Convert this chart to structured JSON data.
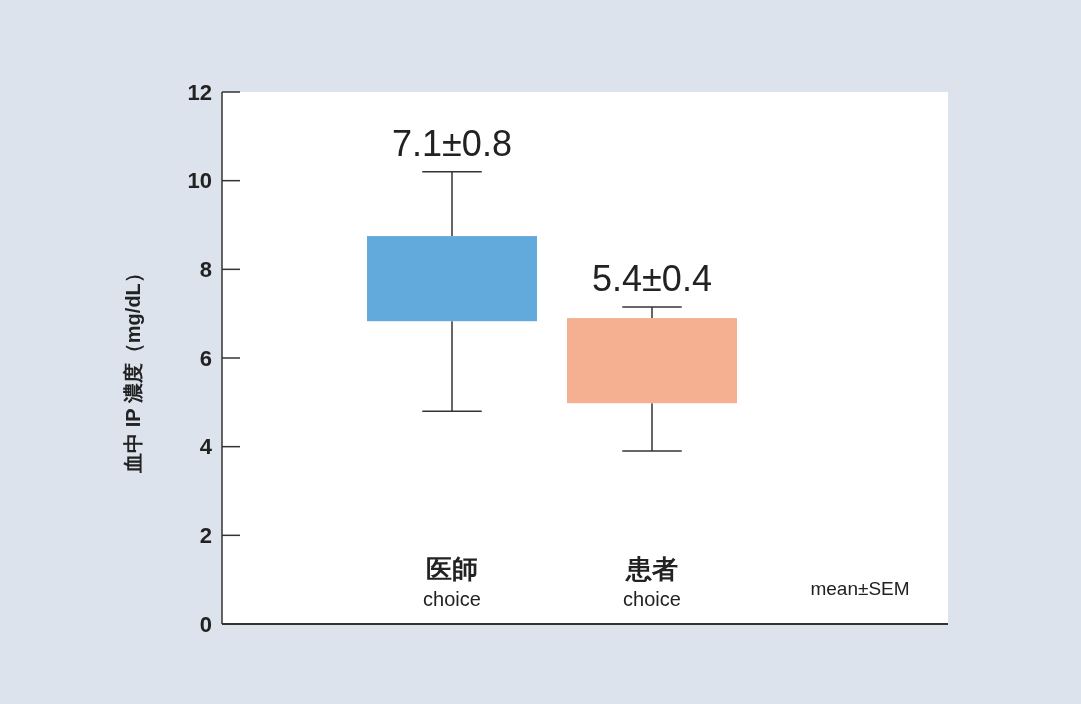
{
  "chart_data": {
    "type": "box",
    "ylabel": "血中 IP 濃度（mg/dL）",
    "categories": [
      "医師\nchoice",
      "患者\nchoice"
    ],
    "colors": [
      "#62a9dc",
      "#f4b090"
    ],
    "boxes": [
      {
        "low": 4.8,
        "q1": 6.83,
        "q3": 8.75,
        "high": 10.2
      },
      {
        "low": 3.9,
        "q1": 4.98,
        "q3": 6.9,
        "high": 7.15
      }
    ],
    "ylim": [
      0,
      12
    ],
    "yticks": [
      0,
      2,
      4,
      6,
      8,
      10,
      12
    ],
    "annotations": [
      {
        "text": "7.1±0.8",
        "x": "医師\nchoice",
        "y": 10.2
      },
      {
        "text": "5.4±0.4",
        "x": "患者\nchoice",
        "y": 7.15
      },
      "mean±SEM"
    ]
  }
}
